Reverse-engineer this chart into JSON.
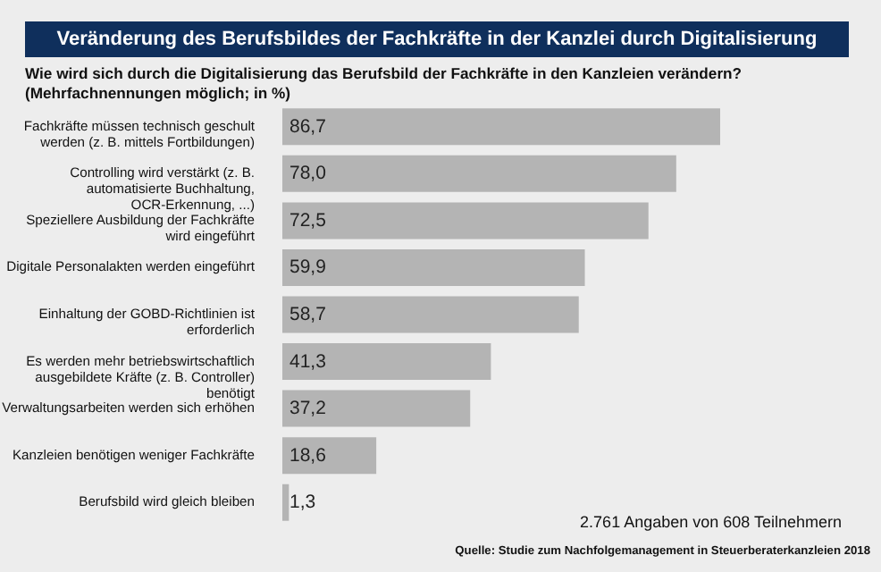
{
  "chart_data": {
    "type": "bar",
    "orientation": "horizontal",
    "title": "Veränderung des Berufsbildes der Fachkräfte in der Kanzlei durch Digitalisierung",
    "subtitle": "Wie wird sich durch die Digitalisierung das Berufsbild der Fachkräfte in den Kanzleien verändern?\n(Mehrfachnennungen möglich; in %)",
    "categories": [
      "Fachkräfte müssen technisch geschult werden (z. B. mittels Fortbildungen)",
      "Controlling wird verstärkt (z. B. automatisierte Buchhaltung, OCR-Erkennung, ...)",
      "Speziellere Ausbildung der Fachkräfte wird eingeführt",
      "Digitale Personalakten werden eingeführt",
      "Einhaltung der GOBD-Richtlinien ist erforderlich",
      "Es werden mehr betriebswirtschaftlich ausgebildete Kräfte (z. B. Controller) benötigt",
      "Verwaltungsarbeiten werden sich erhöhen",
      "Kanzleien benötigen weniger Fachkräfte",
      "Berufsbild wird gleich bleiben"
    ],
    "values": [
      86.7,
      78.0,
      72.5,
      59.9,
      58.7,
      41.3,
      37.2,
      18.6,
      1.3
    ],
    "value_labels": [
      "86,7",
      "78,0",
      "72,5",
      "59,9",
      "58,7",
      "41,3",
      "37,2",
      "18,6",
      "1,3"
    ],
    "color": "#b4b4b4",
    "grid": false,
    "annotations": [
      "2.761 Angaben von 608 Teilnehmern",
      "Quelle: Studie zum Nachfolgemanagement in Steuerberaterkanzleien 2018"
    ]
  }
}
